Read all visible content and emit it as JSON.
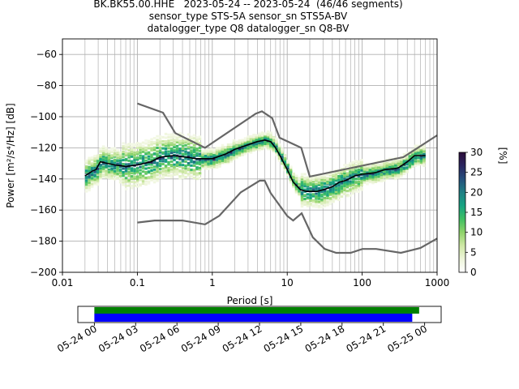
{
  "title_lines": [
    "BK.BK55.00.HHE   2023-05-24 -- 2023-05-24  (46/46 segments)",
    "sensor_type STS-5A sensor_sn STS5A-BV",
    "datalogger_type Q8 datalogger_sn Q8-BV"
  ],
  "colors": {
    "frame": "#000000",
    "grid": "#b0b0b0",
    "noise_model": "#666666",
    "mean_curve": "#000000",
    "coverage_data": "#008000",
    "coverage_gaps": "#0000ff"
  },
  "chart_data": {
    "type": "heatmap",
    "title": "BK.BK55.00.HHE   2023-05-24 -- 2023-05-24  (46/46 segments)",
    "xlabel": "Period [s]",
    "ylabel": "Power [m²/s⁴/Hz] [dB]",
    "x_scale": "log",
    "xlim": [
      0.01,
      1000
    ],
    "ylim": [
      -200,
      -50
    ],
    "grid": true,
    "x_ticks": [
      0.01,
      0.1,
      1,
      10,
      100,
      1000
    ],
    "x_tick_labels": [
      "0.01",
      "0.1",
      "1",
      "10",
      "100",
      "1000"
    ],
    "y_ticks": [
      -200,
      -180,
      -160,
      -140,
      -120,
      -100,
      -80,
      -60
    ],
    "y_tick_labels": [
      "−200",
      "−180",
      "−160",
      "−140",
      "−120",
      "−100",
      "−80",
      "−60"
    ],
    "colorbar": {
      "label": "[%]",
      "range": [
        0,
        30
      ],
      "ticks": [
        0,
        5,
        10,
        15,
        20,
        25,
        30
      ],
      "tick_labels": [
        "0",
        "5",
        "10",
        "15",
        "20",
        "25",
        "30"
      ],
      "colormap": [
        "#ffffff",
        "#eef5da",
        "#cfe8a6",
        "#8fd36a",
        "#3fbf63",
        "#16a382",
        "#1f7f84",
        "#25507d",
        "#2a2560",
        "#2d0d3a"
      ]
    },
    "series": [
      {
        "name": "mean",
        "x": [
          0.02,
          0.025,
          0.028,
          0.032,
          0.04,
          0.05,
          0.07,
          0.1,
          0.15,
          0.2,
          0.3,
          0.45,
          0.6,
          1,
          1.5,
          2,
          3,
          4,
          5,
          6,
          7,
          8,
          10,
          12,
          15,
          18,
          20,
          25,
          30,
          40,
          50,
          60,
          80,
          100,
          150,
          200,
          300,
          400,
          500,
          700
        ],
        "y": [
          -138,
          -135,
          -134,
          -129,
          -130,
          -131,
          -132,
          -131,
          -129,
          -126,
          -125,
          -126,
          -127,
          -127,
          -124,
          -121,
          -118,
          -116,
          -115,
          -116,
          -120,
          -125,
          -134,
          -142,
          -147,
          -148,
          -148,
          -148,
          -147,
          -145,
          -142,
          -141,
          -138,
          -137,
          -136,
          -134,
          -133,
          -129,
          -125,
          -125
        ]
      },
      {
        "name": "noise-model-high",
        "x": [
          0.1,
          0.22,
          0.32,
          0.8,
          3.8,
          4.6,
          6.3,
          7.9,
          15.4,
          20,
          354.8,
          1000
        ],
        "y": [
          -91.5,
          -97.4,
          -110.5,
          -120,
          -98,
          -96.5,
          -101,
          -113.5,
          -120,
          -138.5,
          -126,
          -112
        ]
      },
      {
        "name": "noise-model-low",
        "x": [
          0.1,
          0.17,
          0.4,
          0.8,
          1.24,
          2.4,
          4.3,
          5,
          6,
          10,
          12,
          15.6,
          21.9,
          31.6,
          45,
          70,
          101,
          154,
          328,
          600,
          1000
        ],
        "y": [
          -168,
          -166.7,
          -166.7,
          -169.2,
          -163.7,
          -148.6,
          -141.1,
          -141.1,
          -149,
          -163.8,
          -166.7,
          -162.1,
          -177.5,
          -185,
          -187.5,
          -187.5,
          -185,
          -185,
          -187.5,
          -184.4,
          -178.3
        ]
      }
    ]
  },
  "coverage": {
    "tick_labels": [
      "05-24 00",
      "05-24 03",
      "05-24 06",
      "05-24 09",
      "05-24 12",
      "05-24 15",
      "05-24 18",
      "05-24 21",
      "05-25 00"
    ],
    "tick_hours": [
      0,
      3,
      6,
      9,
      12,
      15,
      18,
      21,
      24
    ],
    "axis_hours": [
      -1.2,
      25.2
    ],
    "data_span_hours": [
      0,
      23.6
    ],
    "psd_span_hours": [
      0,
      23.1
    ]
  }
}
